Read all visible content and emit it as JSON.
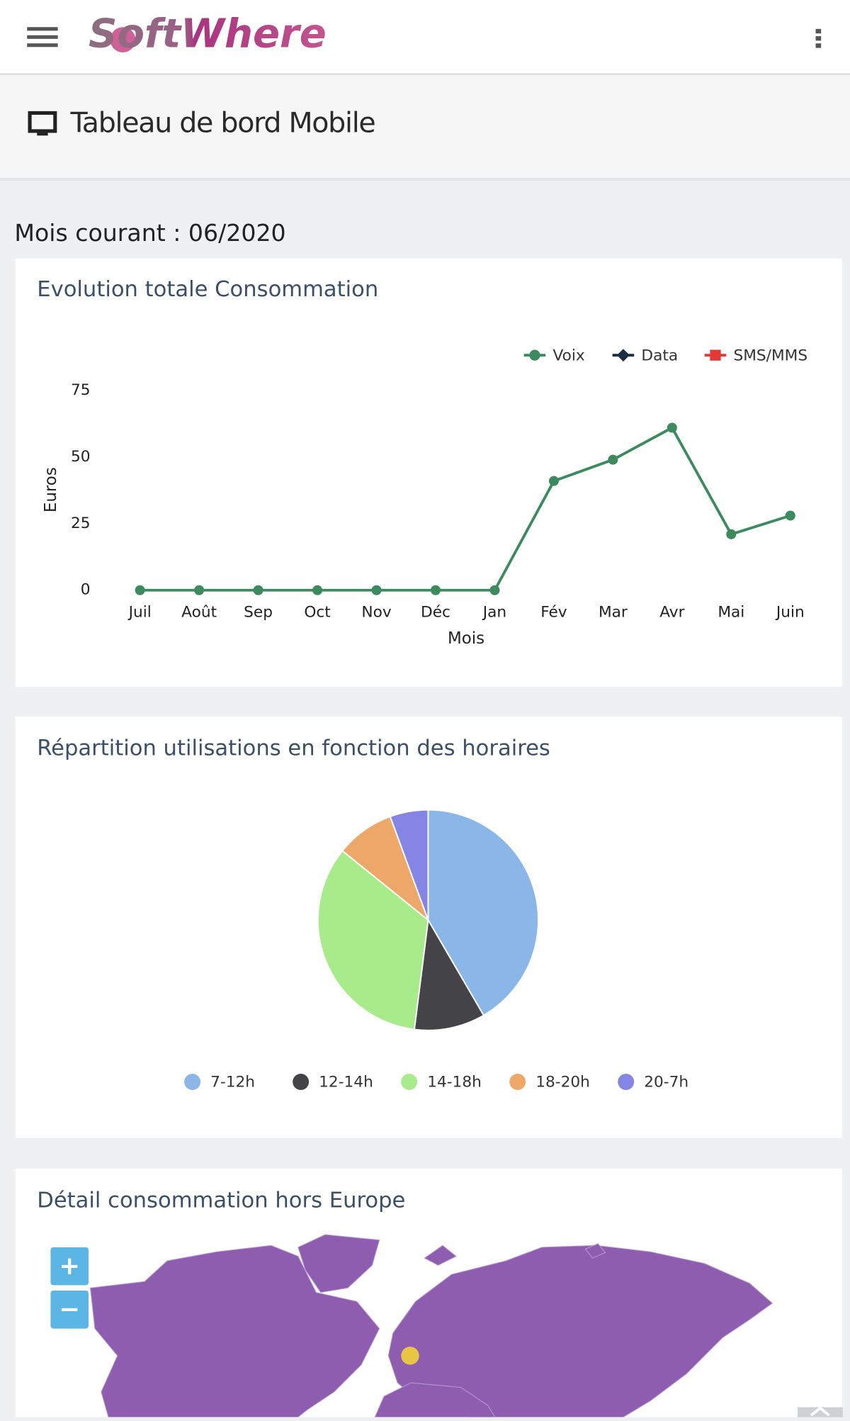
{
  "header": {
    "logo": "SoftWhere"
  },
  "page_title": "Tableau de bord Mobile",
  "current_month": "Mois courant : 06/2020",
  "chart_data": [
    {
      "type": "line",
      "title": "Evolution totale Consommation",
      "categories": [
        "Juil",
        "Août",
        "Sep",
        "Oct",
        "Nov",
        "Déc",
        "Jan",
        "Fév",
        "Mar",
        "Avr",
        "Mai",
        "Juin"
      ],
      "series": [
        {
          "name": "Voix",
          "color": "#3d8a5f",
          "values": [
            0,
            0,
            0,
            0,
            0,
            0,
            0,
            41,
            49,
            61,
            21,
            28
          ]
        },
        {
          "name": "Data",
          "color": "#1c2f42",
          "values": [
            null,
            null,
            null,
            null,
            null,
            null,
            null,
            null,
            null,
            null,
            null,
            null
          ]
        },
        {
          "name": "SMS/MMS",
          "color": "#e53935",
          "values": [
            null,
            null,
            null,
            null,
            null,
            null,
            null,
            null,
            null,
            null,
            null,
            null
          ]
        }
      ],
      "xlabel": "Mois",
      "ylabel": "Euros",
      "ylim": [
        0,
        75
      ],
      "yticks": [
        0,
        25,
        50,
        75
      ],
      "grid": false,
      "legend": "top-right"
    },
    {
      "type": "pie",
      "title": "Répartition utilisations en fonction des horaires",
      "categories": [
        "7-12h",
        "12-14h",
        "14-18h",
        "18-20h",
        "20-7h"
      ],
      "values": [
        41.6,
        10.4,
        33.8,
        8.6,
        5.6
      ],
      "colors": [
        "#8ab6e8",
        "#434348",
        "#a8eb8a",
        "#eda768",
        "#8585e6"
      ],
      "legend": "bottom"
    }
  ],
  "map": {
    "title": "Détail consommation hors Europe",
    "zoom_in": "+",
    "zoom_out": "−"
  }
}
